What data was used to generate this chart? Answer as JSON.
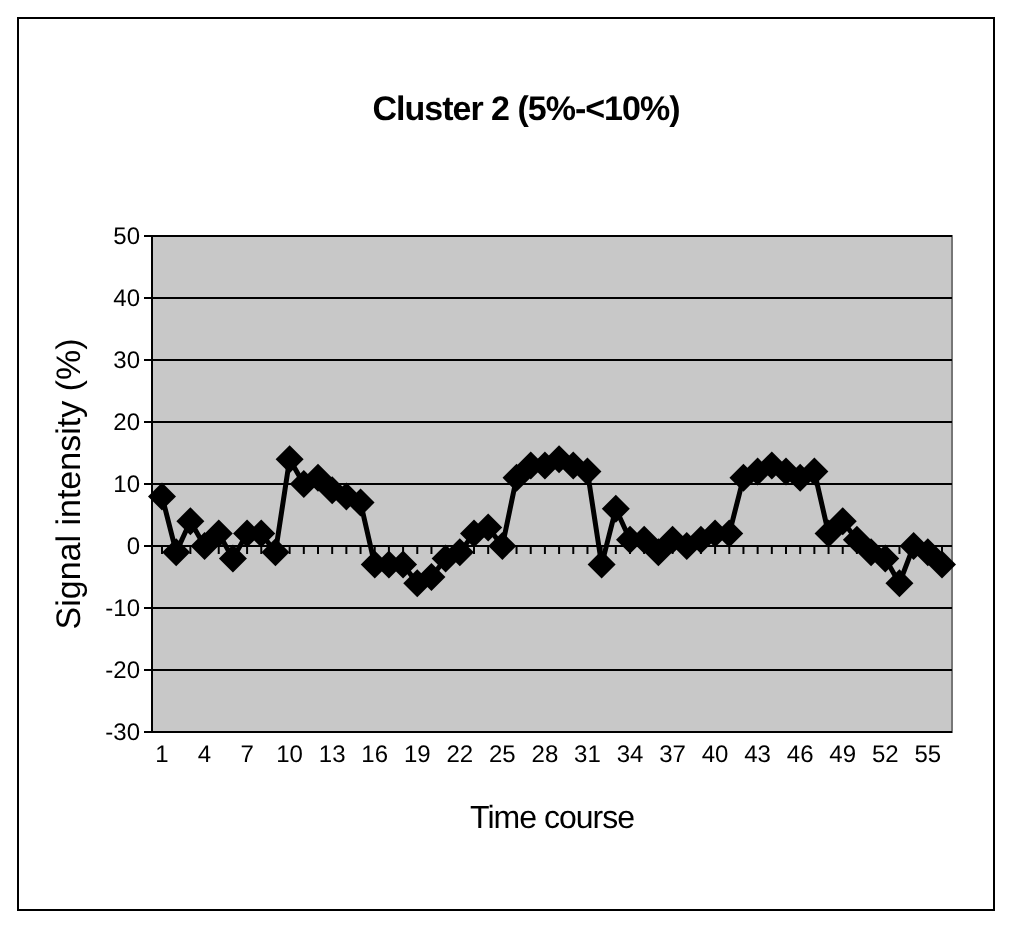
{
  "chart_data": {
    "type": "line",
    "title": "Cluster 2 (5%-<10%)",
    "xlabel": "Time course",
    "ylabel": "Signal intensity (%)",
    "categories": [
      "1",
      null,
      null,
      "4",
      null,
      null,
      "7",
      null,
      null,
      "10",
      null,
      null,
      "13",
      null,
      null,
      "16",
      null,
      null,
      "19",
      null,
      null,
      "22",
      null,
      null,
      "25",
      null,
      null,
      "28",
      null,
      null,
      "31",
      null,
      null,
      "34",
      null,
      null,
      "37",
      null,
      null,
      "40",
      null,
      null,
      "43",
      null,
      null,
      "46",
      null,
      null,
      "49",
      null,
      null,
      "52",
      null,
      null,
      "55",
      null
    ],
    "series": [
      {
        "color": "#000000",
        "values": [
          8,
          -1,
          4,
          0,
          2,
          -2,
          2,
          2,
          -1,
          14,
          10,
          11,
          9,
          8,
          7,
          -3,
          -3,
          -3,
          -6,
          -5,
          -2,
          -1,
          2,
          3,
          0,
          11,
          13,
          13,
          14,
          13,
          12,
          -3,
          6,
          1,
          1,
          -1,
          1,
          0,
          1,
          2,
          2,
          11,
          12,
          13,
          12,
          11,
          12,
          2,
          4,
          1,
          -1,
          -2,
          -6,
          0,
          -1,
          -3
        ]
      }
    ],
    "ylim": [
      -30,
      50
    ],
    "yticks": [
      -30,
      -20,
      -10,
      0,
      10,
      20,
      30,
      40,
      50
    ],
    "grid": "y",
    "marker": "diamond",
    "line_style": "solid"
  }
}
